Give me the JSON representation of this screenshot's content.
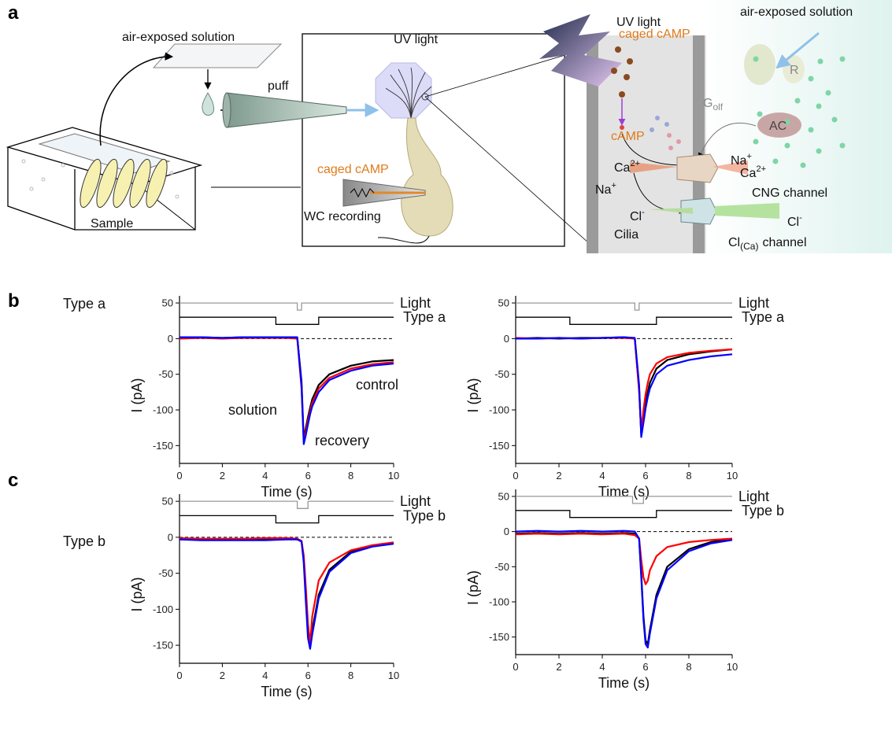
{
  "diagram": {
    "label": "a",
    "sample_setup": {
      "solution": "air-exposed solution",
      "sample": "Sample"
    },
    "cell_setup": {
      "uv": "UV light",
      "puff": "puff",
      "caged": "caged cAMP",
      "recording": "WC recording"
    },
    "cilium": {
      "uv": "UV light",
      "caged": "caged cAMP",
      "golf": {
        "text": "G",
        "sub": "olf"
      },
      "receptor": "R",
      "ac": "AC",
      "camp": "cAMP",
      "na_in": {
        "text": "Na",
        "sup": "+"
      },
      "ca_in": {
        "text": "Ca",
        "sup": "2+"
      },
      "na_out": {
        "text": "Na",
        "sup": "+"
      },
      "ca_out": {
        "text": "Ca",
        "sup": "2+"
      },
      "cng": "CNG channel",
      "cl_in": {
        "text": "Cl",
        "sup": "-"
      },
      "cl_out": {
        "text": "Cl",
        "sup": "-"
      },
      "cilia": "Cilia",
      "clca": {
        "text": "Cl",
        "sub": "(Ca)",
        "rest": "channel"
      },
      "solution": "air-exposed solution"
    }
  },
  "rows": [
    {
      "label": "b",
      "condition": "Type a"
    },
    {
      "label": "c",
      "condition": "Type b"
    }
  ],
  "chart_data": [
    {
      "type": "line",
      "xlabel": "Time (s)",
      "ylabel": "I (pA)",
      "xlim": [
        0,
        10
      ],
      "xticks": [
        0,
        2,
        4,
        6,
        8,
        10
      ],
      "ylim": [
        -175,
        60
      ],
      "yticks": [
        -150,
        -100,
        -50,
        0,
        50
      ],
      "reference_line": 0,
      "x": [
        0,
        1,
        2,
        3,
        4,
        5,
        5.5,
        5.7,
        5.8,
        5.9,
        6.0,
        6.1,
        6.2,
        6.5,
        7,
        8,
        9,
        10
      ],
      "series": [
        {
          "name": "control",
          "color": "#000000",
          "values": [
            1,
            2,
            1,
            2,
            2,
            2,
            1,
            -60,
            -140,
            -125,
            -110,
            -97,
            -85,
            -65,
            -50,
            -38,
            -32,
            -30
          ]
        },
        {
          "name": "solution",
          "color": "#ff0000",
          "values": [
            0,
            1,
            0,
            1,
            1,
            1,
            0,
            -70,
            -143,
            -130,
            -115,
            -102,
            -90,
            -70,
            -55,
            -42,
            -36,
            -33
          ]
        },
        {
          "name": "recovery",
          "color": "#0000ff",
          "values": [
            2,
            2,
            1,
            2,
            2,
            2,
            2,
            -65,
            -148,
            -135,
            -120,
            -106,
            -95,
            -75,
            -58,
            -45,
            -38,
            -35
          ]
        }
      ],
      "steps": [
        {
          "name": "Light",
          "color": "#999999",
          "x": [
            0,
            5.5,
            5.5,
            5.7,
            5.7,
            10
          ],
          "values": [
            50,
            50,
            40,
            40,
            50,
            50
          ]
        },
        {
          "name": "Type a",
          "color": "#000000",
          "x": [
            0,
            4.5,
            4.5,
            6.5,
            6.5,
            10
          ],
          "values": [
            30,
            30,
            20,
            20,
            30,
            30
          ]
        }
      ]
    },
    {
      "type": "line",
      "xlabel": "Time (s)",
      "ylabel": "I (pA)",
      "xlim": [
        0,
        10
      ],
      "xticks": [
        0,
        2,
        4,
        6,
        8,
        10
      ],
      "ylim": [
        -175,
        60
      ],
      "yticks": [
        -150,
        -100,
        -50,
        0,
        50
      ],
      "reference_line": 0,
      "x": [
        0,
        1,
        2,
        3,
        4,
        5,
        5.5,
        5.7,
        5.8,
        5.9,
        6.0,
        6.1,
        6.2,
        6.5,
        7,
        8,
        9,
        10
      ],
      "series": [
        {
          "color": "#000000",
          "values": [
            0,
            1,
            0,
            1,
            1,
            2,
            0,
            -70,
            -135,
            -110,
            -90,
            -75,
            -62,
            -42,
            -30,
            -22,
            -18,
            -15
          ]
        },
        {
          "color": "#ff0000",
          "values": [
            1,
            0,
            1,
            0,
            1,
            1,
            0,
            -75,
            -130,
            -100,
            -78,
            -62,
            -50,
            -35,
            -26,
            -20,
            -17,
            -15
          ]
        },
        {
          "color": "#0000ff",
          "values": [
            0,
            0,
            1,
            0,
            1,
            2,
            1,
            -65,
            -138,
            -118,
            -98,
            -82,
            -70,
            -50,
            -38,
            -30,
            -25,
            -22
          ]
        }
      ],
      "steps": [
        {
          "name": "Light",
          "color": "#999999",
          "x": [
            0,
            5.5,
            5.5,
            5.7,
            5.7,
            10
          ],
          "values": [
            50,
            50,
            40,
            40,
            50,
            50
          ]
        },
        {
          "name": "Type a",
          "color": "#000000",
          "x": [
            0,
            2.5,
            2.5,
            6.5,
            6.5,
            10
          ],
          "values": [
            30,
            30,
            20,
            20,
            30,
            30
          ]
        }
      ]
    },
    {
      "type": "line",
      "xlabel": "Time (s)",
      "ylabel": "I (pA)",
      "xlim": [
        0,
        10
      ],
      "xticks": [
        0,
        2,
        4,
        6,
        8,
        10
      ],
      "ylim": [
        -175,
        60
      ],
      "yticks": [
        -150,
        -100,
        -50,
        0,
        50
      ],
      "reference_line": 0,
      "x": [
        0,
        1,
        2,
        3,
        4,
        5,
        5.5,
        5.7,
        5.8,
        5.9,
        6.0,
        6.1,
        6.2,
        6.5,
        7,
        8,
        9,
        10
      ],
      "series": [
        {
          "color": "#000000",
          "values": [
            -2,
            -3,
            -3,
            -3,
            -3,
            -2,
            -3,
            -5,
            -30,
            -80,
            -130,
            -150,
            -130,
            -80,
            -45,
            -20,
            -12,
            -8
          ]
        },
        {
          "color": "#ff0000",
          "values": [
            -1,
            -2,
            -2,
            -2,
            -1,
            -1,
            -2,
            -5,
            -25,
            -70,
            -120,
            -148,
            -110,
            -60,
            -35,
            -18,
            -11,
            -7
          ]
        },
        {
          "color": "#0000ff",
          "values": [
            -3,
            -4,
            -4,
            -4,
            -4,
            -3,
            -3,
            -6,
            -35,
            -90,
            -140,
            -155,
            -135,
            -85,
            -48,
            -22,
            -13,
            -9
          ]
        }
      ],
      "steps": [
        {
          "name": "Light",
          "color": "#999999",
          "x": [
            0,
            5.5,
            5.5,
            6.0,
            6.0,
            10
          ],
          "values": [
            50,
            50,
            40,
            40,
            50,
            50
          ]
        },
        {
          "name": "Type b",
          "color": "#000000",
          "x": [
            0,
            4.5,
            4.5,
            6.5,
            6.5,
            10
          ],
          "values": [
            30,
            30,
            20,
            20,
            30,
            30
          ]
        }
      ]
    },
    {
      "type": "line",
      "xlabel": "Time (s)",
      "ylabel": "I (pA)",
      "xlim": [
        0,
        10
      ],
      "xticks": [
        0,
        2,
        4,
        6,
        8,
        10
      ],
      "ylim": [
        -175,
        60
      ],
      "yticks": [
        -150,
        -100,
        -50,
        0,
        50
      ],
      "reference_line": 0,
      "x": [
        0,
        1,
        2,
        3,
        4,
        5,
        5.5,
        5.7,
        5.8,
        5.9,
        6.0,
        6.1,
        6.2,
        6.5,
        7,
        8,
        9,
        10
      ],
      "series": [
        {
          "color": "#000000",
          "values": [
            -3,
            -2,
            -3,
            -2,
            -3,
            -2,
            -3,
            -10,
            -60,
            -120,
            -155,
            -160,
            -140,
            -90,
            -50,
            -25,
            -15,
            -10
          ]
        },
        {
          "color": "#ff0000",
          "values": [
            -4,
            -3,
            -4,
            -3,
            -4,
            -3,
            -5,
            -10,
            -40,
            -65,
            -75,
            -70,
            -55,
            -35,
            -22,
            -15,
            -12,
            -10
          ]
        },
        {
          "color": "#0000ff",
          "values": [
            0,
            1,
            0,
            1,
            0,
            1,
            0,
            -10,
            -65,
            -125,
            -160,
            -165,
            -145,
            -95,
            -55,
            -28,
            -17,
            -12
          ]
        }
      ],
      "steps": [
        {
          "name": "Light",
          "color": "#999999",
          "x": [
            0,
            5.4,
            5.4,
            5.9,
            5.9,
            10
          ],
          "values": [
            50,
            50,
            40,
            40,
            50,
            50
          ]
        },
        {
          "name": "Type b",
          "color": "#000000",
          "x": [
            0,
            2.5,
            2.5,
            6.5,
            6.5,
            10
          ],
          "values": [
            30,
            30,
            20,
            20,
            30,
            30
          ]
        }
      ]
    }
  ]
}
